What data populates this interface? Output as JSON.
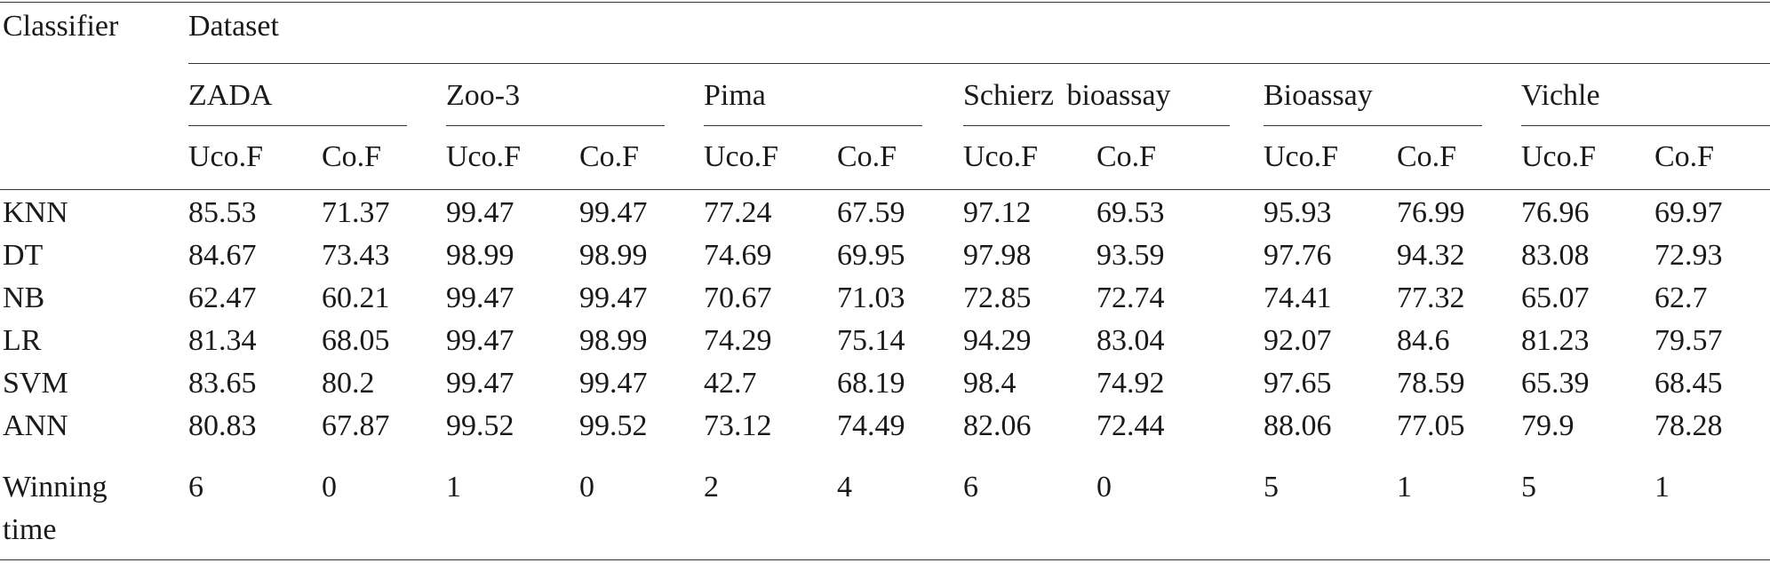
{
  "table": {
    "header": {
      "classifier": "Classifier",
      "dataset": "Dataset",
      "groups": [
        "ZADA",
        "Zoo-3",
        "Pima",
        "Schierz bioassay",
        "Bioassay",
        "Vichle"
      ],
      "subcols": [
        "Uco.F",
        "Co.F"
      ]
    },
    "rows": [
      {
        "label": "KNN",
        "values": [
          "85.53",
          "71.37",
          "99.47",
          "99.47",
          "77.24",
          "67.59",
          "97.12",
          "69.53",
          "95.93",
          "76.99",
          "76.96",
          "69.97"
        ]
      },
      {
        "label": "DT",
        "values": [
          "84.67",
          "73.43",
          "98.99",
          "98.99",
          "74.69",
          "69.95",
          "97.98",
          "93.59",
          "97.76",
          "94.32",
          "83.08",
          "72.93"
        ]
      },
      {
        "label": "NB",
        "values": [
          "62.47",
          "60.21",
          "99.47",
          "99.47",
          "70.67",
          "71.03",
          "72.85",
          "72.74",
          "74.41",
          "77.32",
          "65.07",
          "62.7"
        ]
      },
      {
        "label": "LR",
        "values": [
          "81.34",
          "68.05",
          "99.47",
          "98.99",
          "74.29",
          "75.14",
          "94.29",
          "83.04",
          "92.07",
          "84.6",
          "81.23",
          "79.57"
        ]
      },
      {
        "label": "SVM",
        "values": [
          "83.65",
          "80.2",
          "99.47",
          "99.47",
          "42.7",
          "68.19",
          "98.4",
          "74.92",
          "97.65",
          "78.59",
          "65.39",
          "68.45"
        ]
      },
      {
        "label": "ANN",
        "values": [
          "80.83",
          "67.87",
          "99.52",
          "99.52",
          "73.12",
          "74.49",
          "82.06",
          "72.44",
          "88.06",
          "77.05",
          "79.9",
          "78.28"
        ]
      }
    ],
    "winning": {
      "label_line1": "Winning",
      "label_line2": "time",
      "values": [
        "6",
        "0",
        "1",
        "0",
        "2",
        "4",
        "6",
        "0",
        "5",
        "1",
        "5",
        "1"
      ]
    }
  }
}
